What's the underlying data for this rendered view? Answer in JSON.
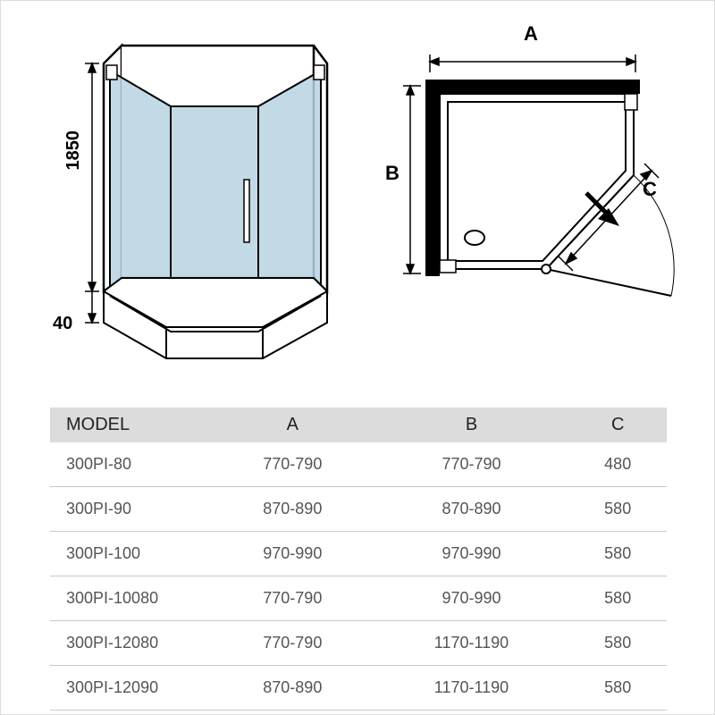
{
  "diagram": {
    "front": {
      "height_label": "1850",
      "base_height_label": "40",
      "glass_color": "#b7d4e0",
      "outline_color": "#000000",
      "base_color": "#ffffff"
    },
    "top": {
      "label_A": "A",
      "label_B": "B",
      "label_C": "C",
      "wall_color": "#000000",
      "tray_color": "#ffffff",
      "outline_color": "#000000"
    }
  },
  "table": {
    "columns": [
      "MODEL",
      "A",
      "B",
      "C"
    ],
    "rows": [
      [
        "300PI-80",
        "770-790",
        "770-790",
        "480"
      ],
      [
        "300PI-90",
        "870-890",
        "870-890",
        "580"
      ],
      [
        "300PI-100",
        "970-990",
        "970-990",
        "580"
      ],
      [
        "300PI-10080",
        "770-790",
        "970-990",
        "580"
      ],
      [
        "300PI-12080",
        "770-790",
        "1170-1190",
        "580"
      ],
      [
        "300PI-12090",
        "870-890",
        "1170-1190",
        "580"
      ]
    ],
    "header_bg": "#dcdcdc",
    "row_border": "#c8c8c8",
    "text_color": "#555555"
  }
}
